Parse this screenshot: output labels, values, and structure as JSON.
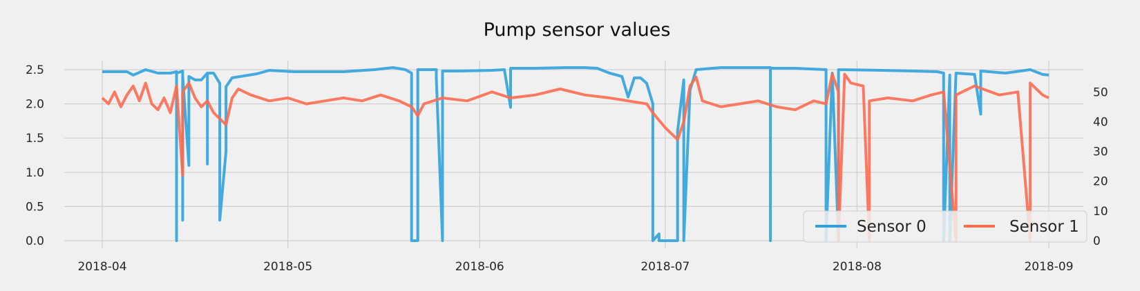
{
  "chart_data": {
    "type": "line",
    "title": "Pump sensor values",
    "xlabel": "",
    "ylabel_left": "",
    "ylabel_right": "",
    "x_range": [
      "2018-04-01",
      "2018-09-01"
    ],
    "x_ticks": [
      "2018-04",
      "2018-05",
      "2018-06",
      "2018-07",
      "2018-08",
      "2018-09"
    ],
    "ylim_left": [
      0.0,
      2.5
    ],
    "yticks_left": [
      "0.0",
      "0.5",
      "1.0",
      "1.5",
      "2.0",
      "2.5"
    ],
    "ylim_right": [
      0,
      57.5
    ],
    "yticks_right": [
      "0",
      "10",
      "20",
      "30",
      "40",
      "50"
    ],
    "grid": true,
    "legend_position": "lower-right",
    "series": [
      {
        "name": "Sensor 0",
        "axis": "left",
        "color": "#30a2da",
        "points": [
          [
            "2018-04-01",
            2.47
          ],
          [
            "2018-04-05",
            2.47
          ],
          [
            "2018-04-06",
            2.42
          ],
          [
            "2018-04-08",
            2.5
          ],
          [
            "2018-04-10",
            2.45
          ],
          [
            "2018-04-12",
            2.45
          ],
          [
            "2018-04-13",
            2.47
          ],
          [
            "2018-04-13",
            0.0
          ],
          [
            "2018-04-13",
            2.45
          ],
          [
            "2018-04-14",
            2.48
          ],
          [
            "2018-04-14",
            0.3
          ],
          [
            "2018-04-14",
            2.4
          ],
          [
            "2018-04-15",
            1.1
          ],
          [
            "2018-04-15",
            2.4
          ],
          [
            "2018-04-16",
            2.35
          ],
          [
            "2018-04-17",
            2.35
          ],
          [
            "2018-04-18",
            2.45
          ],
          [
            "2018-04-18",
            1.12
          ],
          [
            "2018-04-18",
            2.45
          ],
          [
            "2018-04-19",
            2.45
          ],
          [
            "2018-04-20",
            2.3
          ],
          [
            "2018-04-20",
            0.3
          ],
          [
            "2018-04-21",
            1.3
          ],
          [
            "2018-04-21",
            2.25
          ],
          [
            "2018-04-22",
            2.38
          ],
          [
            "2018-04-26",
            2.44
          ],
          [
            "2018-04-28",
            2.49
          ],
          [
            "2018-05-02",
            2.47
          ],
          [
            "2018-05-05",
            2.47
          ],
          [
            "2018-05-10",
            2.47
          ],
          [
            "2018-05-15",
            2.5
          ],
          [
            "2018-05-18",
            2.53
          ],
          [
            "2018-05-20",
            2.5
          ],
          [
            "2018-05-21",
            2.45
          ],
          [
            "2018-05-21",
            0.0
          ],
          [
            "2018-05-22",
            0.0
          ],
          [
            "2018-05-22",
            2.5
          ],
          [
            "2018-05-25",
            2.5
          ],
          [
            "2018-05-25",
            2.38
          ],
          [
            "2018-05-26",
            0.0
          ],
          [
            "2018-05-26",
            2.48
          ],
          [
            "2018-05-29",
            2.48
          ],
          [
            "2018-06-03",
            2.49
          ],
          [
            "2018-06-05",
            2.5
          ],
          [
            "2018-06-06",
            1.95
          ],
          [
            "2018-06-06",
            2.52
          ],
          [
            "2018-06-10",
            2.52
          ],
          [
            "2018-06-15",
            2.53
          ],
          [
            "2018-06-18",
            2.53
          ],
          [
            "2018-06-20",
            2.52
          ],
          [
            "2018-06-22",
            2.45
          ],
          [
            "2018-06-24",
            2.4
          ],
          [
            "2018-06-25",
            2.1
          ],
          [
            "2018-06-26",
            2.38
          ],
          [
            "2018-06-27",
            2.38
          ],
          [
            "2018-06-28",
            2.3
          ],
          [
            "2018-06-29",
            2.0
          ],
          [
            "2018-06-29",
            0.0
          ],
          [
            "2018-06-30",
            0.1
          ],
          [
            "2018-06-30",
            0.0
          ],
          [
            "2018-07-02",
            0.0
          ],
          [
            "2018-07-03",
            0.0
          ],
          [
            "2018-07-03",
            1.6
          ],
          [
            "2018-07-04",
            2.35
          ],
          [
            "2018-07-04",
            0.0
          ],
          [
            "2018-07-05",
            2.2
          ],
          [
            "2018-07-06",
            2.5
          ],
          [
            "2018-07-10",
            2.53
          ],
          [
            "2018-07-15",
            2.53
          ],
          [
            "2018-07-18",
            2.53
          ],
          [
            "2018-07-18",
            0.0
          ],
          [
            "2018-07-18",
            2.52
          ],
          [
            "2018-07-22",
            2.52
          ],
          [
            "2018-07-27",
            2.5
          ],
          [
            "2018-07-27",
            0.0
          ],
          [
            "2018-07-28",
            2.45
          ],
          [
            "2018-07-29",
            0.0
          ],
          [
            "2018-07-29",
            2.5
          ],
          [
            "2018-08-05",
            2.49
          ],
          [
            "2018-08-10",
            2.48
          ],
          [
            "2018-08-14",
            2.47
          ],
          [
            "2018-08-15",
            2.45
          ],
          [
            "2018-08-15",
            0.0
          ],
          [
            "2018-08-16",
            2.42
          ],
          [
            "2018-08-16",
            0.0
          ],
          [
            "2018-08-17",
            2.45
          ],
          [
            "2018-08-20",
            2.43
          ],
          [
            "2018-08-21",
            1.85
          ],
          [
            "2018-08-21",
            2.48
          ],
          [
            "2018-08-25",
            2.45
          ],
          [
            "2018-08-29",
            2.5
          ],
          [
            "2018-08-31",
            2.43
          ],
          [
            "2018-09-01",
            2.42
          ]
        ]
      },
      {
        "name": "Sensor 1",
        "axis": "right",
        "color": "#fc6c50",
        "points": [
          [
            "2018-04-01",
            48
          ],
          [
            "2018-04-02",
            46
          ],
          [
            "2018-04-03",
            50
          ],
          [
            "2018-04-04",
            45
          ],
          [
            "2018-04-05",
            49
          ],
          [
            "2018-04-06",
            52
          ],
          [
            "2018-04-07",
            47
          ],
          [
            "2018-04-08",
            53
          ],
          [
            "2018-04-09",
            46
          ],
          [
            "2018-04-10",
            44
          ],
          [
            "2018-04-11",
            48
          ],
          [
            "2018-04-12",
            43
          ],
          [
            "2018-04-13",
            52
          ],
          [
            "2018-04-14",
            22
          ],
          [
            "2018-04-14",
            50
          ],
          [
            "2018-04-15",
            53
          ],
          [
            "2018-04-16",
            48
          ],
          [
            "2018-04-17",
            45
          ],
          [
            "2018-04-18",
            47
          ],
          [
            "2018-04-19",
            43
          ],
          [
            "2018-04-20",
            41
          ],
          [
            "2018-04-21",
            39
          ],
          [
            "2018-04-22",
            48
          ],
          [
            "2018-04-23",
            51
          ],
          [
            "2018-04-25",
            49
          ],
          [
            "2018-04-28",
            47
          ],
          [
            "2018-05-01",
            48
          ],
          [
            "2018-05-04",
            46
          ],
          [
            "2018-05-07",
            47
          ],
          [
            "2018-05-10",
            48
          ],
          [
            "2018-05-13",
            47
          ],
          [
            "2018-05-16",
            49
          ],
          [
            "2018-05-19",
            47
          ],
          [
            "2018-05-21",
            45
          ],
          [
            "2018-05-22",
            42
          ],
          [
            "2018-05-23",
            46
          ],
          [
            "2018-05-26",
            48
          ],
          [
            "2018-05-30",
            47
          ],
          [
            "2018-06-03",
            50
          ],
          [
            "2018-06-06",
            48
          ],
          [
            "2018-06-10",
            49
          ],
          [
            "2018-06-14",
            51
          ],
          [
            "2018-06-18",
            49
          ],
          [
            "2018-06-22",
            48
          ],
          [
            "2018-06-25",
            47
          ],
          [
            "2018-06-28",
            46
          ],
          [
            "2018-06-29",
            43
          ],
          [
            "2018-07-01",
            38
          ],
          [
            "2018-07-03",
            34
          ],
          [
            "2018-07-04",
            40
          ],
          [
            "2018-07-05",
            52
          ],
          [
            "2018-07-06",
            55
          ],
          [
            "2018-07-07",
            47
          ],
          [
            "2018-07-10",
            45
          ],
          [
            "2018-07-13",
            46
          ],
          [
            "2018-07-16",
            47
          ],
          [
            "2018-07-19",
            45
          ],
          [
            "2018-07-22",
            44
          ],
          [
            "2018-07-25",
            47
          ],
          [
            "2018-07-27",
            46
          ],
          [
            "2018-07-28",
            56
          ],
          [
            "2018-07-29",
            50
          ],
          [
            "2018-07-29",
            0
          ],
          [
            "2018-07-30",
            56
          ],
          [
            "2018-07-31",
            53
          ],
          [
            "2018-08-02",
            52
          ],
          [
            "2018-08-03",
            0
          ],
          [
            "2018-08-03",
            47
          ],
          [
            "2018-08-06",
            48
          ],
          [
            "2018-08-10",
            47
          ],
          [
            "2018-08-13",
            49
          ],
          [
            "2018-08-15",
            50
          ],
          [
            "2018-08-17",
            0
          ],
          [
            "2018-08-17",
            49
          ],
          [
            "2018-08-20",
            52
          ],
          [
            "2018-08-24",
            49
          ],
          [
            "2018-08-27",
            50
          ],
          [
            "2018-08-29",
            0
          ],
          [
            "2018-08-29",
            53
          ],
          [
            "2018-08-31",
            49
          ],
          [
            "2018-09-01",
            48
          ]
        ]
      }
    ]
  }
}
